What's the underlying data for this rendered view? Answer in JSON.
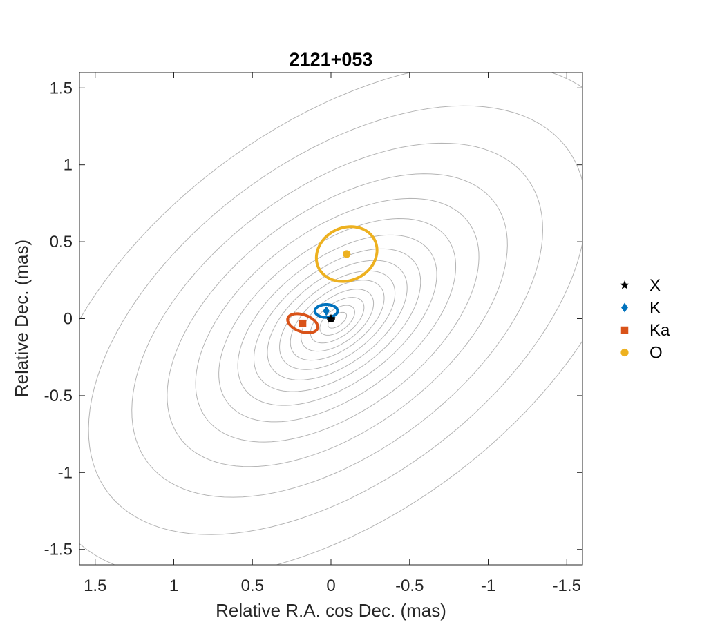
{
  "chart_data": {
    "type": "scatter",
    "title": "2121+053",
    "xlabel": "Relative R.A. cos Dec. (mas)",
    "ylabel": "Relative Dec. (mas)",
    "xlim": [
      1.6,
      -1.6
    ],
    "ylim": [
      -1.6,
      1.6
    ],
    "x_reversed": true,
    "xticks": [
      1.5,
      1,
      0.5,
      0,
      -0.5,
      -1,
      -1.5
    ],
    "yticks": [
      -1.5,
      -1,
      -0.5,
      0,
      0.5,
      1,
      1.5
    ],
    "xtick_labels": [
      "1.5",
      "1",
      "0.5",
      "0",
      "-0.5",
      "-1",
      "-1.5"
    ],
    "ytick_labels": [
      "-1.5",
      "-1",
      "-0.5",
      "0",
      "0.5",
      "1",
      "1.5"
    ],
    "grid": false,
    "legend_position": "outside-right",
    "background_contours": {
      "color": "#b4b4b4",
      "center": [
        -0.04,
        -0.01
      ],
      "angle_deg": -38,
      "levels": [
        [
          0.07,
          0.035
        ],
        [
          0.13,
          0.07
        ],
        [
          0.2,
          0.105
        ],
        [
          0.27,
          0.145
        ],
        [
          0.35,
          0.185
        ],
        [
          0.43,
          0.23
        ],
        [
          0.52,
          0.28
        ],
        [
          0.62,
          0.335
        ],
        [
          0.74,
          0.4
        ],
        [
          0.88,
          0.48
        ],
        [
          1.05,
          0.58
        ],
        [
          1.26,
          0.7
        ],
        [
          1.52,
          0.85
        ],
        [
          1.84,
          1.03
        ],
        [
          2.2,
          1.25
        ]
      ]
    },
    "series": [
      {
        "name": "X",
        "marker": "star",
        "color": "#000000",
        "x": 0.0,
        "y": 0.0,
        "error_ellipse": {
          "a": 0.02,
          "b": 0.018,
          "angle_deg": 0
        }
      },
      {
        "name": "K",
        "marker": "diamond",
        "color": "#0072BD",
        "x": 0.03,
        "y": 0.05,
        "error_ellipse": {
          "a": 0.072,
          "b": 0.042,
          "angle_deg": 0
        }
      },
      {
        "name": "Ka",
        "marker": "square",
        "color": "#D95319",
        "x": 0.18,
        "y": -0.03,
        "error_ellipse": {
          "a": 0.1,
          "b": 0.055,
          "angle_deg": 20
        }
      },
      {
        "name": "O",
        "marker": "circle",
        "color": "#EDB120",
        "x": -0.1,
        "y": 0.42,
        "error_ellipse": {
          "a": 0.2,
          "b": 0.17,
          "angle_deg": -30
        }
      }
    ]
  }
}
